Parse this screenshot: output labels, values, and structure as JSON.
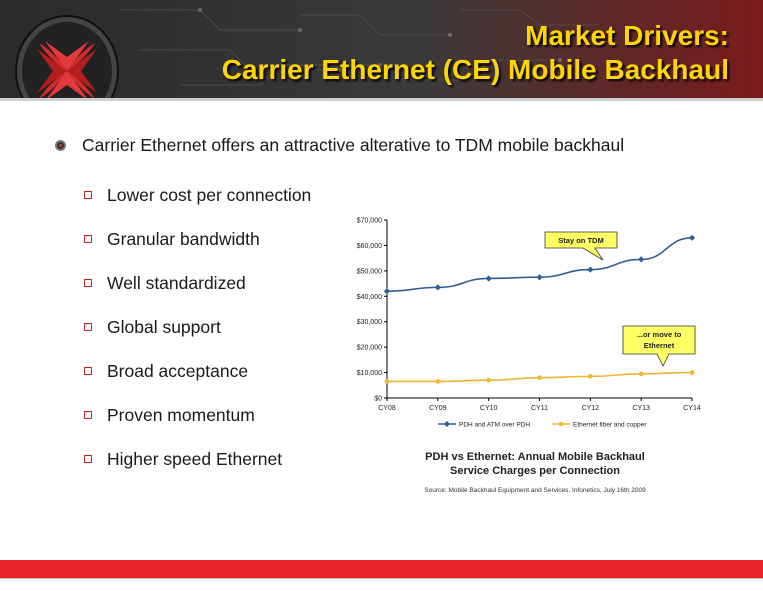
{
  "header": {
    "title_line1": "Market Drivers:",
    "title_line2": "Carrier Ethernet (CE) Mobile Backhaul",
    "title_color": "#ffd500"
  },
  "main_bullet": "Carrier Ethernet offers an attractive alterative to TDM mobile backhaul",
  "sub_bullets": [
    "Lower cost per connection",
    "Granular bandwidth",
    "Well standardized",
    "Global support",
    "Broad acceptance",
    "Proven momentum",
    "Higher speed Ethernet"
  ],
  "chart_data": {
    "type": "line",
    "categories": [
      "CY08",
      "CY09",
      "CY10",
      "CY11",
      "CY12",
      "CY13",
      "CY14"
    ],
    "ylim": [
      0,
      70000
    ],
    "yticks": [
      "$0",
      "$10,000",
      "$20,000",
      "$30,000",
      "$40,000",
      "$50,000",
      "$60,000",
      "$70,000"
    ],
    "series": [
      {
        "name": "PDH and ATM over PDH",
        "color": "#2f5f96",
        "values": [
          42000,
          43500,
          47000,
          47500,
          50500,
          54500,
          63000
        ]
      },
      {
        "name": "Ethernet fiber and copper",
        "color": "#f2b531",
        "values": [
          6500,
          6500,
          7000,
          8000,
          8500,
          9500,
          10000
        ]
      }
    ],
    "annotations": [
      {
        "text": "Stay on TDM",
        "series": 0
      },
      {
        "text_line1": "...or move to",
        "text_line2": "Ethernet",
        "series": 1
      }
    ],
    "grid": false,
    "legend_position": "bottom"
  },
  "caption_line1": "PDH vs Ethernet: Annual Mobile Backhaul",
  "caption_line2": "Service Charges per Connection",
  "source": "Source: Mobile Backhaul Equipment and Services, Infonetics, July 16th 2009",
  "colors": {
    "accent_red": "#e8262b",
    "bullet_red": "#c0262b"
  }
}
